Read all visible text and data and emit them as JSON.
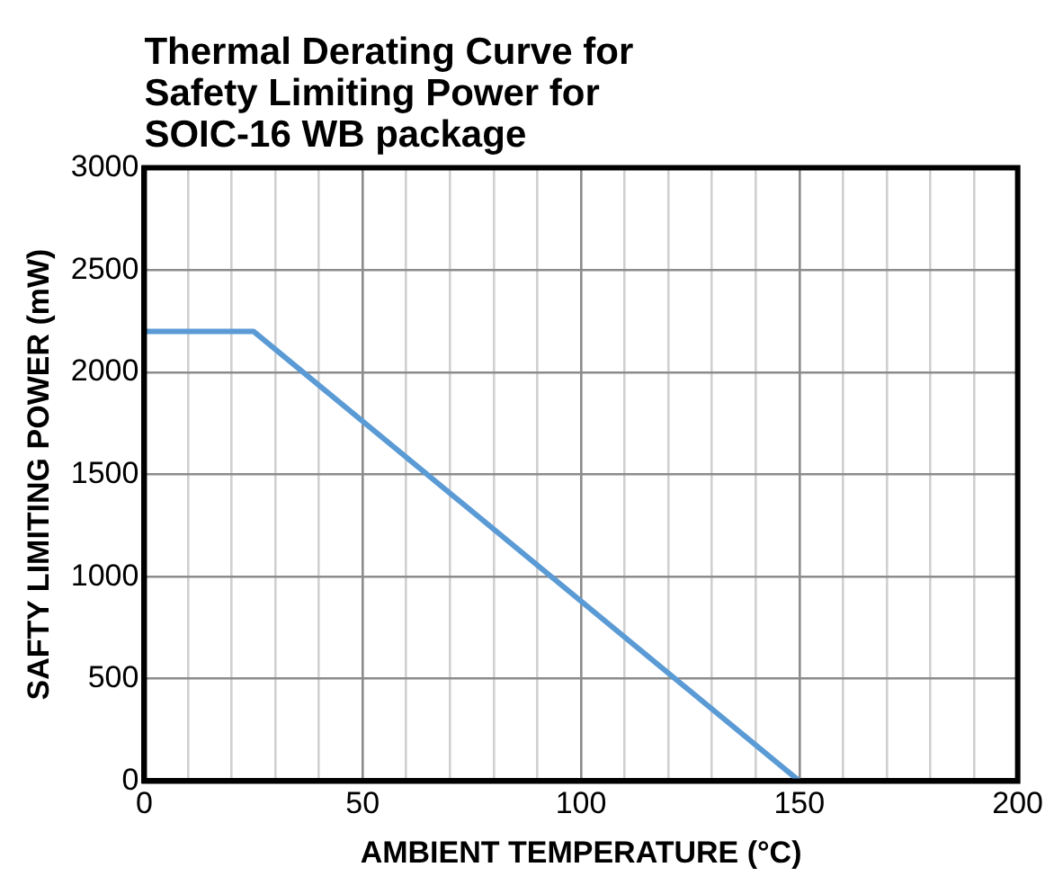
{
  "chart_data": {
    "type": "line",
    "title": "Thermal Derating Curve for\nSafety Limiting Power for\nSOIC-16 WB package",
    "xlabel": "AMBIENT TEMPERATURE (°C)",
    "ylabel": "SAFTY LIMITING POWER (mW)",
    "x": [
      0,
      25,
      150
    ],
    "series": [
      {
        "color": "#5b9bd5",
        "values": [
          2200,
          2200,
          0
        ]
      }
    ],
    "xlim": [
      0,
      200
    ],
    "xticks": [
      0,
      {
        "value": 10,
        "label": null
      },
      {
        "value": 20,
        "label": null
      },
      {
        "value": 30,
        "label": null
      },
      {
        "value": 40,
        "label": null
      },
      50,
      {
        "value": 60,
        "label": null
      },
      {
        "value": 70,
        "label": null
      },
      {
        "value": 80,
        "label": null
      },
      {
        "value": 90,
        "label": null
      },
      100,
      {
        "value": 110,
        "label": null
      },
      {
        "value": 120,
        "label": null
      },
      {
        "value": 130,
        "label": null
      },
      {
        "value": 140,
        "label": null
      },
      150,
      {
        "value": 160,
        "label": null
      },
      {
        "value": 170,
        "label": null
      },
      {
        "value": 180,
        "label": null
      },
      {
        "value": 190,
        "label": null
      },
      200
    ],
    "ylim": [
      0,
      3000
    ],
    "yticks": [
      0,
      500,
      1000,
      1500,
      2000,
      2500,
      3000
    ],
    "grid": true,
    "marker": "none",
    "line_style": "solid",
    "legend": false
  }
}
